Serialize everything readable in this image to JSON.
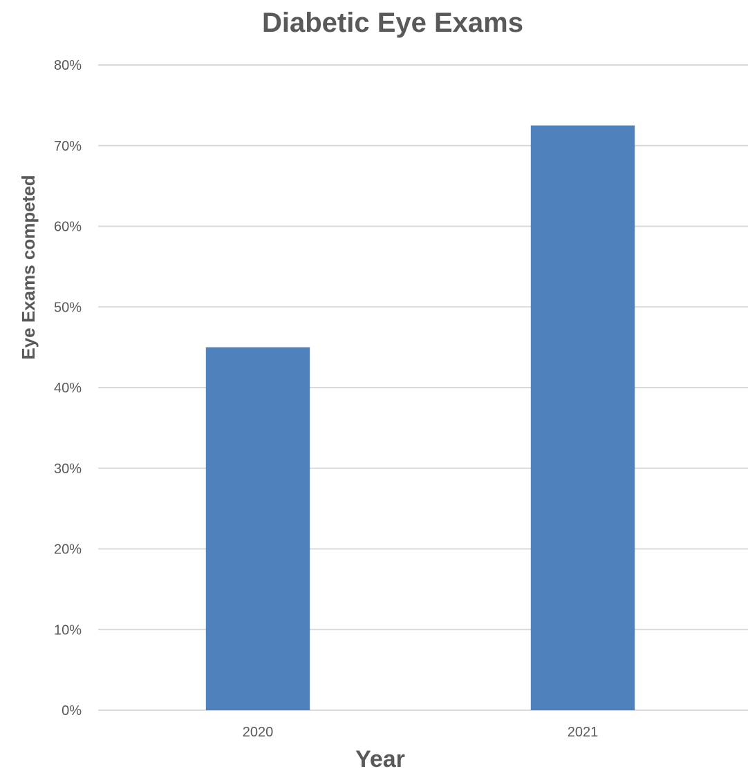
{
  "chart_data": {
    "type": "bar",
    "title": "Diabetic Eye Exams",
    "xlabel": "Year",
    "ylabel": "Eye Exams competed",
    "categories": [
      "2020",
      "2021"
    ],
    "series": [
      {
        "values": [
          0.45,
          0.725
        ],
        "color": "#4f81bd"
      }
    ],
    "ylim": [
      0,
      0.8
    ],
    "yticks": [
      0,
      0.1,
      0.2,
      0.3,
      0.4,
      0.5,
      0.6,
      0.7,
      0.8
    ],
    "ytick_labels": [
      "0%",
      "10%",
      "20%",
      "30%",
      "40%",
      "50%",
      "60%",
      "70%",
      "80%"
    ],
    "grid": true,
    "legend": "none"
  }
}
